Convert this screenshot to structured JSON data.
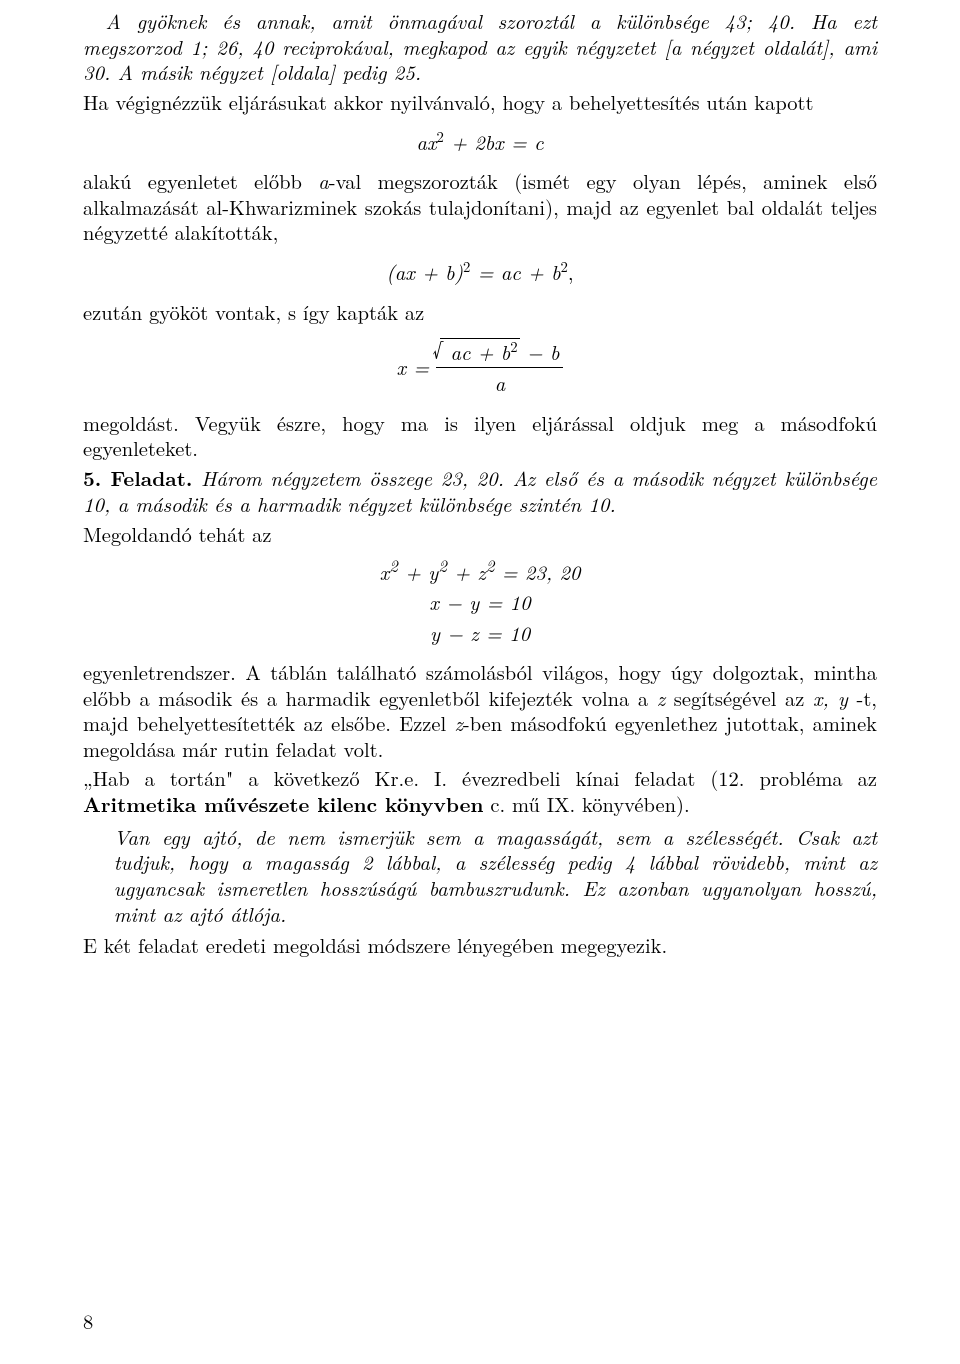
{
  "p1_a": "A gyöknek és annak, amit önmagával szoroztál a különbsége ",
  "p1_b": "43; 40",
  "p1_c": ". Ha ezt megszorzod ",
  "p1_d": "1; 26, 40",
  "p1_e": " reciprokával, megkapod az egyik négyzetet [a négyzet oldalát], ami ",
  "p1_f": "30",
  "p1_g": ". A másik négyzet [oldala] pedig ",
  "p1_h": "25",
  "p1_i": ".",
  "p2": "Ha végignézzük eljárásukat akkor nyilvánvaló, hogy a behelyettesítés után kapott",
  "eq1_a": "ax",
  "eq1_sup1": "2",
  "eq1_b": " + 2bx = c",
  "p3_a": "alakú egyenletet előbb ",
  "p3_b": "a",
  "p3_c": "-val megszorozták (ismét egy olyan lépés, aminek első alkalmazását al-Khwarizminek szokás tulajdonítani), majd az egyenlet bal oldalát teljes négyzetté alakították,",
  "eq2_a": "(ax + b)",
  "eq2_sup1": "2",
  "eq2_b": " = ac + b",
  "eq2_sup2": "2",
  "eq2_c": ",",
  "p4": "ezután gyököt vontak, s így kapták az",
  "eq3_x": "x = ",
  "eq3_num_a": "ac + b",
  "eq3_num_sup": "2",
  "eq3_num_b": " − b",
  "eq3_den": "a",
  "p5_a": "megoldást. Vegyük észre, hogy ma is ilyen eljárással oldjuk meg a másodfokú egyenleteket.",
  "p6_label": "5. Feladat.",
  "p6_a": " Három négyzetem összege ",
  "p6_b": "23, 20",
  "p6_c": ". Az első és a második négyzet különbsége ",
  "p6_d": "10",
  "p6_e": ", a második és a harmadik négyzet különbsége szintén ",
  "p6_f": "10",
  "p6_g": ".",
  "p7": "Megoldandó tehát az",
  "eq4_l1_a": "x",
  "eq4_l1_sup1": "2",
  "eq4_l1_b": " + y",
  "eq4_l1_sup2": "2",
  "eq4_l1_c": " + z",
  "eq4_l1_sup3": "2",
  "eq4_l1_d": " = 23, 20",
  "eq4_l2": "x − y = 10",
  "eq4_l3": "y − z = 10",
  "p8_a": "egyenletrendszer.  A táblán található számolásból világos, hogy úgy dolgoztak, mintha előbb a második és a harmadik egyenletből kifejezték volna a ",
  "p8_b": "z",
  "p8_c": " segítségével az ",
  "p8_d": "x, y",
  "p8_e": " -t, majd behelyettesítették az elsőbe.  Ezzel ",
  "p8_f": "z",
  "p8_g": "-ben másodfokú egyenlethez jutottak, aminek megoldása már rutin feladat volt.",
  "p9_a": "„Hab a tortán\" a következő Kr.e. I. évezredbeli kínai feladat (",
  "p9_b": "12",
  "p9_c": ". probléma az ",
  "p9_d": "Aritmetika művészete kilenc könyvben",
  "p9_e": " c. mű IX. könyvében).",
  "quote_a": "Van egy ajtó, de nem ismerjük sem a magasságát, sem a szélességét. Csak azt tudjuk, hogy a magasság 2 lábbal, a szélesség pedig 4 lábbal rövidebb, mint az ugyancsak ismeretlen hosszúságú bambuszrudunk. Ez azonban ugyanolyan hosszú, mint az ajtó átlója.",
  "p10": "E két feladat eredeti megoldási módszere lényegében megegyezik.",
  "pageno": "8"
}
